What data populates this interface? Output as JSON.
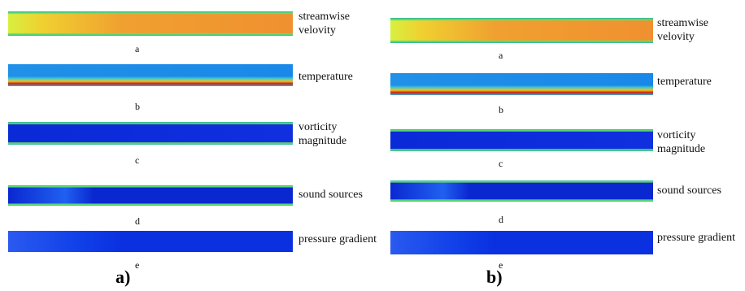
{
  "columns": [
    {
      "label": "a)",
      "panels": [
        {
          "caption": "streamwise velovity",
          "letter": "a"
        },
        {
          "caption": "temperature",
          "letter": "b"
        },
        {
          "caption": "vorticity magnitude",
          "letter": "c"
        },
        {
          "caption": "sound sources",
          "letter": "d"
        },
        {
          "caption": "pressure gradient",
          "letter": "e"
        }
      ]
    },
    {
      "label": "b)",
      "panels": [
        {
          "caption": "streamwise velovity",
          "letter": "a"
        },
        {
          "caption": "temperature",
          "letter": "b"
        },
        {
          "caption": "vorticity magnitude",
          "letter": "c"
        },
        {
          "caption": "sound sources",
          "letter": "d"
        },
        {
          "caption": "pressure gradient",
          "letter": "e"
        }
      ]
    }
  ]
}
